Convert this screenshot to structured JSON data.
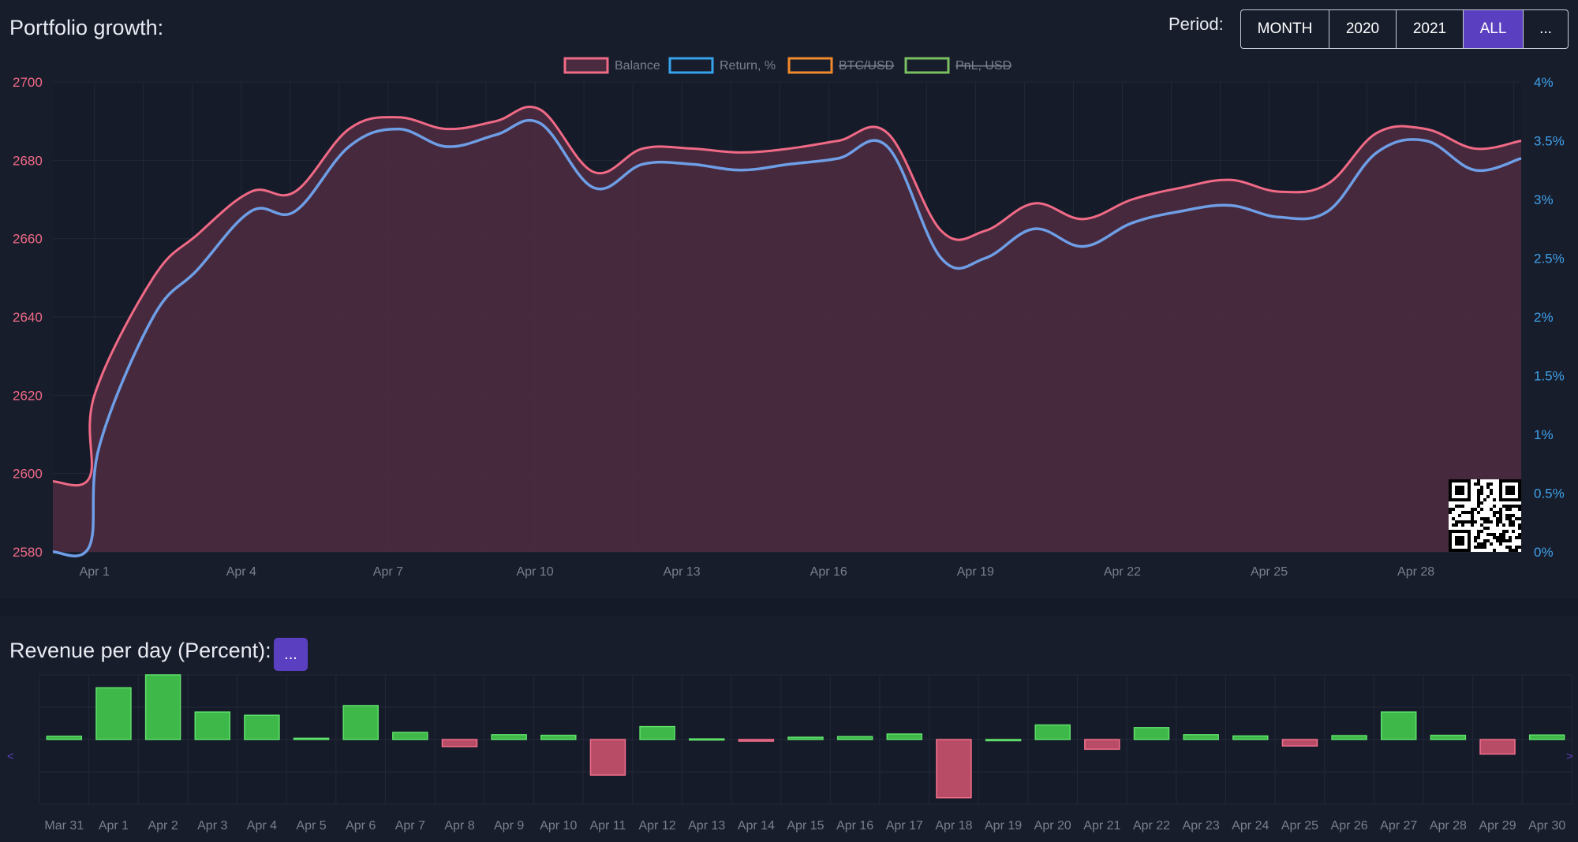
{
  "growth": {
    "title": "Portfolio growth:",
    "period_label": "Period:",
    "period_buttons": [
      {
        "label": "MONTH",
        "active": false
      },
      {
        "label": "2020",
        "active": false
      },
      {
        "label": "2021",
        "active": false
      },
      {
        "label": "ALL",
        "active": true
      },
      {
        "label": "...",
        "active": false
      }
    ]
  },
  "revenue": {
    "title": "Revenue per day (Percent):",
    "more_label": "...",
    "nav_left": "<",
    "nav_right": ">"
  },
  "colors": {
    "balance": "#f06a86",
    "return": "#6e9ee6",
    "btc": "#f08a2c",
    "pnl": "#78c060",
    "positive_bar": "#3fb84a",
    "negative_bar": "#e0546f",
    "accent": "#5a3fc0"
  },
  "chart_data": [
    {
      "type": "line",
      "legend": [
        {
          "name": "Balance",
          "color": "#f06a86",
          "hidden": false
        },
        {
          "name": "Return, %",
          "color": "#36a2eb",
          "hidden": false
        },
        {
          "name": "BTC/USD",
          "color": "#f08a2c",
          "hidden": true
        },
        {
          "name": "PnL, USD",
          "color": "#78c060",
          "hidden": true
        }
      ],
      "x_ticks": [
        "Apr 1",
        "Apr 4",
        "Apr 7",
        "Apr 10",
        "Apr 13",
        "Apr 16",
        "Apr 19",
        "Apr 22",
        "Apr 25",
        "Apr 28"
      ],
      "x_tick_days": [
        1,
        4,
        7,
        10,
        13,
        16,
        19,
        22,
        25,
        28
      ],
      "x_range_days": [
        0.15,
        30.15
      ],
      "y_left": {
        "ticks": [
          "2700",
          "2680",
          "2660",
          "2640",
          "2620",
          "2600",
          "2580"
        ],
        "range": [
          2580,
          2700
        ]
      },
      "y_right": {
        "ticks": [
          "4%",
          "3.5%",
          "3%",
          "2.5%",
          "2%",
          "1.5%",
          "1%",
          "0.5%",
          "0%"
        ],
        "range": [
          0,
          4
        ]
      },
      "series": [
        {
          "name": "Balance",
          "axis": "left",
          "points": [
            [
              0.15,
              2598
            ],
            [
              0.9,
              2599
            ],
            [
              1.0,
              2620
            ],
            [
              2.2,
              2650
            ],
            [
              3.1,
              2661
            ],
            [
              4.2,
              2672
            ],
            [
              5.1,
              2672
            ],
            [
              6.2,
              2688
            ],
            [
              7.2,
              2691
            ],
            [
              8.2,
              2688
            ],
            [
              9.2,
              2690
            ],
            [
              10.1,
              2693
            ],
            [
              11.2,
              2677
            ],
            [
              12.2,
              2683
            ],
            [
              13.2,
              2683
            ],
            [
              14.2,
              2682
            ],
            [
              15.2,
              2683
            ],
            [
              16.2,
              2685
            ],
            [
              17.2,
              2687
            ],
            [
              18.3,
              2662
            ],
            [
              19.2,
              2662
            ],
            [
              20.2,
              2669
            ],
            [
              21.2,
              2665
            ],
            [
              22.2,
              2670
            ],
            [
              23.2,
              2673
            ],
            [
              24.2,
              2675
            ],
            [
              25.2,
              2672
            ],
            [
              26.2,
              2674
            ],
            [
              27.2,
              2687
            ],
            [
              28.2,
              2688
            ],
            [
              29.2,
              2683
            ],
            [
              30.15,
              2685
            ]
          ]
        },
        {
          "name": "Return, %",
          "axis": "right",
          "points": [
            [
              0.15,
              0.0
            ],
            [
              0.9,
              0.05
            ],
            [
              1.1,
              0.9
            ],
            [
              2.2,
              2.0
            ],
            [
              3.1,
              2.4
            ],
            [
              4.2,
              2.9
            ],
            [
              5.1,
              2.9
            ],
            [
              6.2,
              3.45
            ],
            [
              7.2,
              3.6
            ],
            [
              8.2,
              3.45
            ],
            [
              9.2,
              3.55
            ],
            [
              10.1,
              3.65
            ],
            [
              11.2,
              3.1
            ],
            [
              12.2,
              3.3
            ],
            [
              13.2,
              3.3
            ],
            [
              14.2,
              3.25
            ],
            [
              15.2,
              3.3
            ],
            [
              16.2,
              3.35
            ],
            [
              17.2,
              3.45
            ],
            [
              18.3,
              2.5
            ],
            [
              19.2,
              2.5
            ],
            [
              20.2,
              2.75
            ],
            [
              21.2,
              2.6
            ],
            [
              22.2,
              2.8
            ],
            [
              23.2,
              2.9
            ],
            [
              24.2,
              2.95
            ],
            [
              25.2,
              2.85
            ],
            [
              26.2,
              2.9
            ],
            [
              27.2,
              3.4
            ],
            [
              28.2,
              3.5
            ],
            [
              29.2,
              3.25
            ],
            [
              30.15,
              3.35
            ]
          ]
        }
      ],
      "area_fill": "Balance",
      "grid": true
    },
    {
      "type": "bar",
      "categories": [
        "Mar 31",
        "Apr 1",
        "Apr 2",
        "Apr 3",
        "Apr 4",
        "Apr 5",
        "Apr 6",
        "Apr 7",
        "Apr 8",
        "Apr 9",
        "Apr 10",
        "Apr 11",
        "Apr 12",
        "Apr 13",
        "Apr 14",
        "Apr 15",
        "Apr 16",
        "Apr 17",
        "Apr 18",
        "Apr 19",
        "Apr 20",
        "Apr 21",
        "Apr 22",
        "Apr 23",
        "Apr 24",
        "Apr 25",
        "Apr 26",
        "Apr 27",
        "Apr 28",
        "Apr 29",
        "Apr 30"
      ],
      "values": [
        0.1,
        1.6,
        2.0,
        0.85,
        0.75,
        0.04,
        1.05,
        0.22,
        -0.22,
        0.15,
        0.13,
        -1.1,
        0.4,
        0.02,
        -0.05,
        0.07,
        0.09,
        0.17,
        -1.8,
        0.0,
        0.45,
        -0.3,
        0.37,
        0.15,
        0.11,
        -0.2,
        0.12,
        0.85,
        0.13,
        -0.45,
        0.14
      ],
      "ylim": [
        -2,
        2
      ],
      "grid": true
    }
  ]
}
